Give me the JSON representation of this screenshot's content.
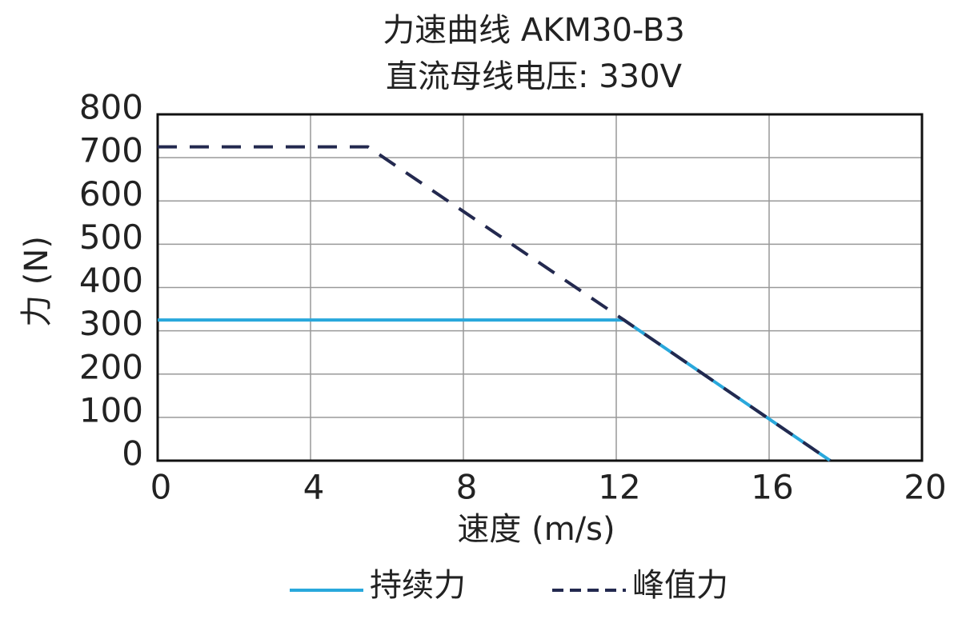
{
  "chart_data": {
    "type": "line",
    "title": "力速曲线 AKM30-B3",
    "subtitle": "直流母线电压: 330V",
    "x_label": "速度 (m/s)",
    "y_label": "力 (N)",
    "xlim": [
      0,
      20
    ],
    "xticks": [
      0,
      4,
      8,
      12,
      16,
      20
    ],
    "ylim": [
      0,
      800
    ],
    "yticks": [
      0,
      100,
      200,
      300,
      400,
      500,
      600,
      700,
      800
    ],
    "grid": true,
    "legend": "bottom",
    "series": [
      {
        "name": "持续力",
        "color": "#29a8dc",
        "dash": false,
        "x": [
          0,
          12.2,
          17.6
        ],
        "values": [
          325,
          325,
          0
        ]
      },
      {
        "name": "峰值力",
        "color": "#23294f",
        "dash": true,
        "x": [
          0,
          5.5,
          12.2,
          17.6
        ],
        "values": [
          725,
          725,
          325,
          0
        ]
      }
    ]
  }
}
